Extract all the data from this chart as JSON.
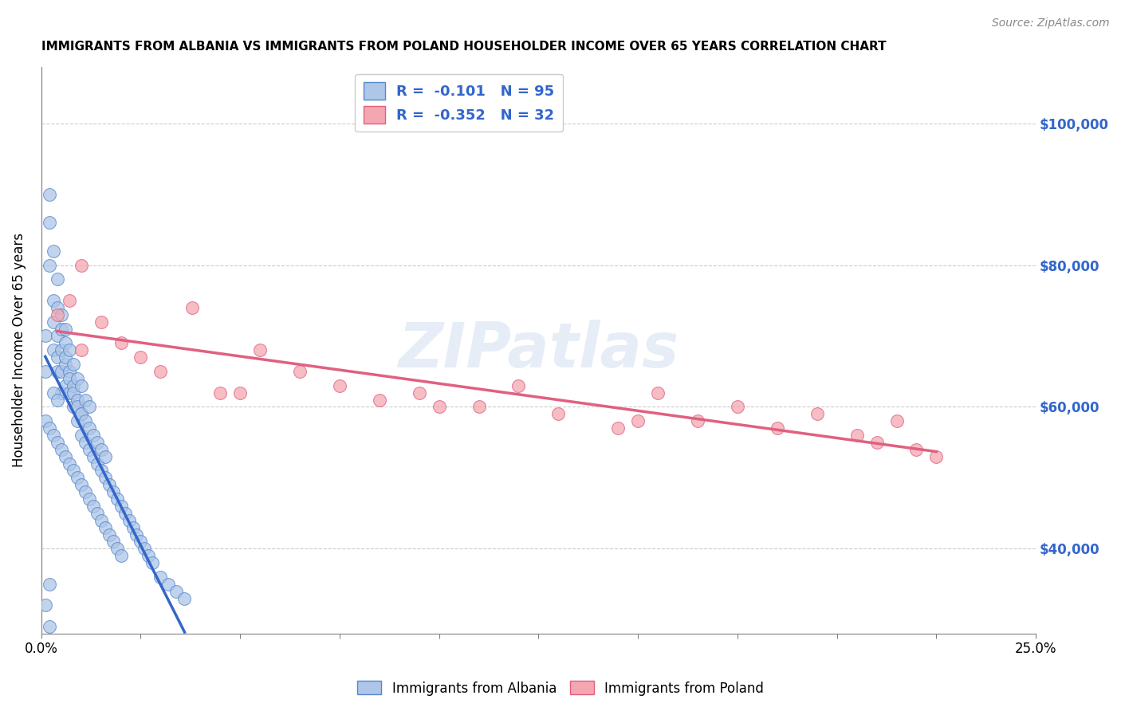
{
  "title": "IMMIGRANTS FROM ALBANIA VS IMMIGRANTS FROM POLAND HOUSEHOLDER INCOME OVER 65 YEARS CORRELATION CHART",
  "source": "Source: ZipAtlas.com",
  "ylabel": "Householder Income Over 65 years",
  "xlim": [
    0.0,
    0.25
  ],
  "ylim": [
    28000,
    108000
  ],
  "yticks": [
    40000,
    60000,
    80000,
    100000
  ],
  "yticklabels": [
    "$40,000",
    "$60,000",
    "$80,000",
    "$100,000"
  ],
  "albania_color": "#aec6e8",
  "poland_color": "#f4a7b0",
  "albania_edge": "#5588cc",
  "poland_edge": "#e06080",
  "trendline_albania_color": "#3366cc",
  "trendline_poland_color": "#e06080",
  "trendline_dashed_color": "#99bbdd",
  "R_albania": -0.101,
  "N_albania": 95,
  "R_poland": -0.352,
  "N_poland": 32,
  "legend_label_albania": "Immigrants from Albania",
  "legend_label_poland": "Immigrants from Poland",
  "watermark": "ZIPatlas",
  "albania_x": [
    0.001,
    0.001,
    0.002,
    0.002,
    0.002,
    0.003,
    0.003,
    0.003,
    0.003,
    0.004,
    0.004,
    0.004,
    0.004,
    0.004,
    0.005,
    0.005,
    0.005,
    0.005,
    0.005,
    0.006,
    0.006,
    0.006,
    0.006,
    0.006,
    0.007,
    0.007,
    0.007,
    0.007,
    0.008,
    0.008,
    0.008,
    0.008,
    0.009,
    0.009,
    0.009,
    0.009,
    0.01,
    0.01,
    0.01,
    0.01,
    0.011,
    0.011,
    0.011,
    0.012,
    0.012,
    0.012,
    0.013,
    0.013,
    0.014,
    0.014,
    0.015,
    0.015,
    0.016,
    0.016,
    0.017,
    0.018,
    0.019,
    0.02,
    0.021,
    0.022,
    0.023,
    0.024,
    0.025,
    0.026,
    0.027,
    0.028,
    0.03,
    0.032,
    0.034,
    0.036,
    0.001,
    0.002,
    0.003,
    0.004,
    0.005,
    0.006,
    0.007,
    0.008,
    0.009,
    0.01,
    0.011,
    0.012,
    0.013,
    0.014,
    0.015,
    0.016,
    0.017,
    0.018,
    0.019,
    0.02,
    0.003,
    0.004,
    0.002,
    0.001,
    0.002
  ],
  "albania_y": [
    65000,
    70000,
    90000,
    80000,
    86000,
    75000,
    72000,
    68000,
    82000,
    70000,
    74000,
    67000,
    78000,
    65000,
    71000,
    68000,
    65000,
    73000,
    62000,
    69000,
    66000,
    63000,
    71000,
    67000,
    65000,
    62000,
    68000,
    64000,
    63000,
    60000,
    66000,
    62000,
    61000,
    58000,
    64000,
    60000,
    59000,
    56000,
    63000,
    59000,
    58000,
    55000,
    61000,
    57000,
    54000,
    60000,
    56000,
    53000,
    55000,
    52000,
    54000,
    51000,
    53000,
    50000,
    49000,
    48000,
    47000,
    46000,
    45000,
    44000,
    43000,
    42000,
    41000,
    40000,
    39000,
    38000,
    36000,
    35000,
    34000,
    33000,
    58000,
    57000,
    56000,
    55000,
    54000,
    53000,
    52000,
    51000,
    50000,
    49000,
    48000,
    47000,
    46000,
    45000,
    44000,
    43000,
    42000,
    41000,
    40000,
    39000,
    62000,
    61000,
    35000,
    32000,
    29000
  ],
  "poland_x": [
    0.004,
    0.007,
    0.01,
    0.015,
    0.02,
    0.025,
    0.03,
    0.038,
    0.045,
    0.055,
    0.065,
    0.075,
    0.085,
    0.095,
    0.11,
    0.12,
    0.13,
    0.145,
    0.155,
    0.165,
    0.175,
    0.185,
    0.195,
    0.205,
    0.21,
    0.215,
    0.22,
    0.225,
    0.01,
    0.05,
    0.1,
    0.15
  ],
  "poland_y": [
    73000,
    75000,
    68000,
    72000,
    69000,
    67000,
    65000,
    74000,
    62000,
    68000,
    65000,
    63000,
    61000,
    62000,
    60000,
    63000,
    59000,
    57000,
    62000,
    58000,
    60000,
    57000,
    59000,
    56000,
    55000,
    58000,
    54000,
    53000,
    80000,
    62000,
    60000,
    58000
  ]
}
